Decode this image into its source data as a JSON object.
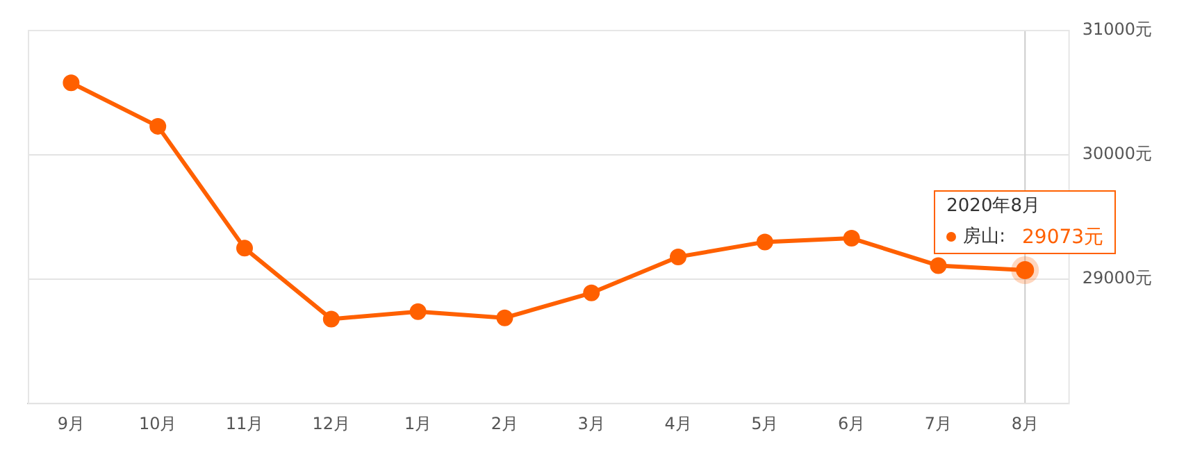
{
  "chart_data": {
    "type": "line",
    "categories": [
      "9月",
      "10月",
      "11月",
      "12月",
      "1月",
      "2月",
      "3月",
      "4月",
      "5月",
      "6月",
      "7月",
      "8月"
    ],
    "series": [
      {
        "name": "房山:",
        "color": "#ff6000",
        "values": [
          30580,
          30230,
          29250,
          28680,
          28740,
          28690,
          28890,
          29180,
          29300,
          29330,
          29110,
          29073
        ],
        "value_labels": [
          null,
          null,
          null,
          null,
          null,
          null,
          null,
          null,
          null,
          null,
          null,
          "29073元"
        ]
      }
    ],
    "ylim": [
      28000,
      31000
    ],
    "yticks": [
      {
        "value": 28000,
        "label": null
      },
      {
        "value": 29000,
        "label": "29000元"
      },
      {
        "value": 30000,
        "label": "30000元"
      },
      {
        "value": 31000,
        "label": "31000元"
      }
    ],
    "grid": "y",
    "legend": "right",
    "marker": "circle",
    "line_style": "solid",
    "ref_lines": [
      {
        "axis": "x",
        "value": "8月",
        "color": "#cccccc"
      }
    ],
    "annotations": [
      "2020年8月"
    ]
  }
}
